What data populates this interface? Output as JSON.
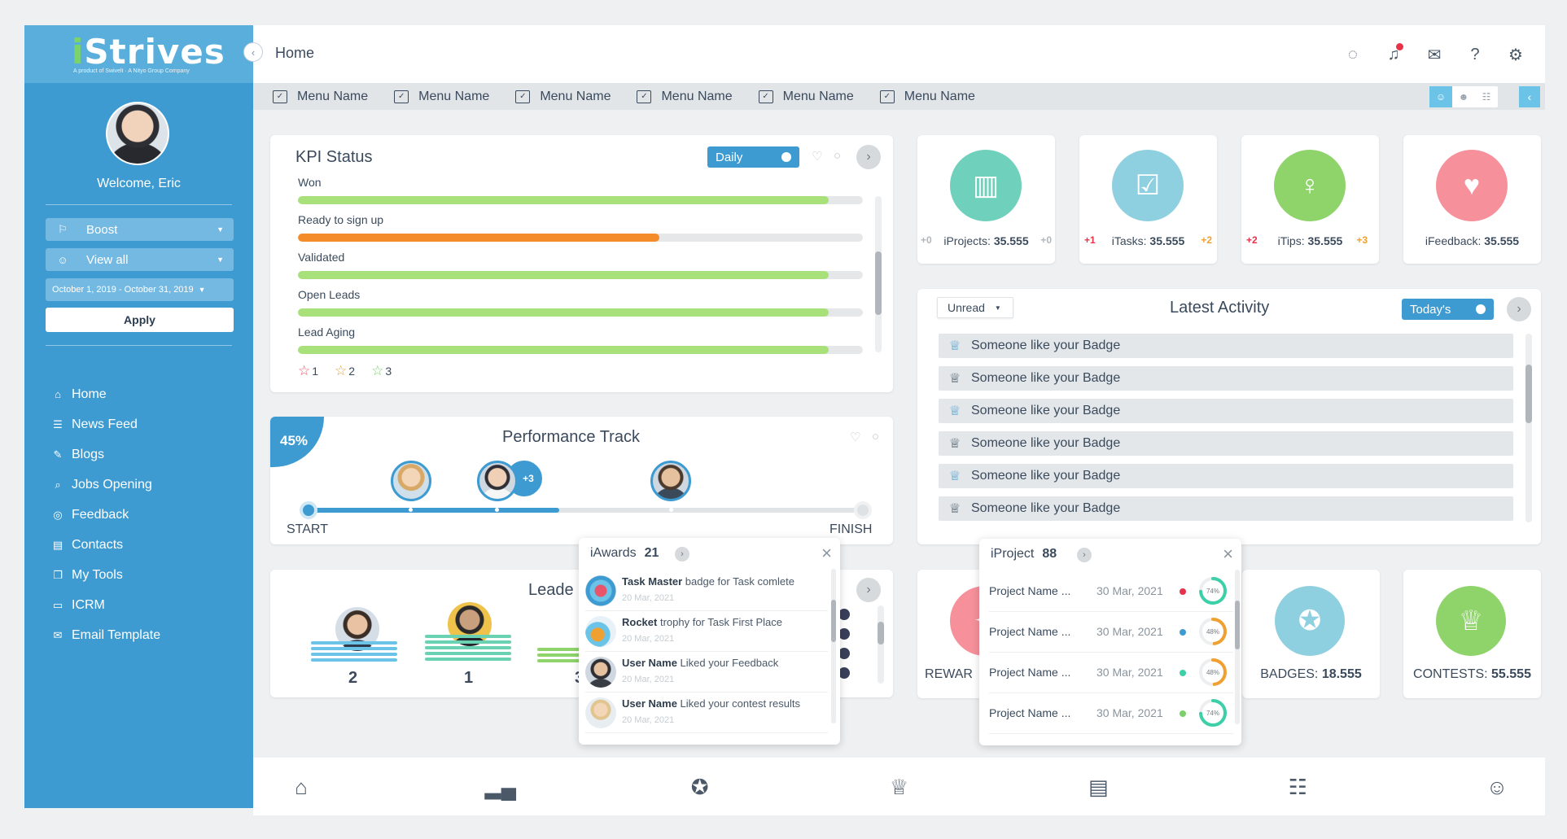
{
  "logo": {
    "prefix": "i",
    "name": "Strives",
    "sub": "A product of Swivelt · A Nityo Group Company"
  },
  "user": {
    "welcome": "Welcome, Eric"
  },
  "filters": {
    "boost": "Boost",
    "view": "View all",
    "date_range": "October 1, 2019 - October 31, 2019",
    "apply": "Apply"
  },
  "sidebar": {
    "items": [
      {
        "label": "Home",
        "icon": "home-icon"
      },
      {
        "label": "News Feed",
        "icon": "news-icon"
      },
      {
        "label": "Blogs",
        "icon": "blog-icon"
      },
      {
        "label": "Jobs Opening",
        "icon": "jobs-icon"
      },
      {
        "label": "Feedback",
        "icon": "feedback-icon"
      },
      {
        "label": "Contacts",
        "icon": "contacts-icon"
      },
      {
        "label": "My Tools",
        "icon": "tools-icon"
      },
      {
        "label": "ICRM",
        "icon": "crm-icon"
      },
      {
        "label": "Email Template",
        "icon": "email-template-icon"
      }
    ]
  },
  "header": {
    "title": "Home"
  },
  "menubar": {
    "items": [
      "Menu Name",
      "Menu Name",
      "Menu Name",
      "Menu Name",
      "Menu Name",
      "Menu Name"
    ]
  },
  "kpi": {
    "title": "KPI Status",
    "toggle": "Daily",
    "rows": [
      {
        "label": "Won",
        "value": 0.94,
        "color": "#a8e17a"
      },
      {
        "label": "Ready to sign up",
        "value": 0.64,
        "color": "#f58c2a"
      },
      {
        "label": "Validated",
        "value": 0.94,
        "color": "#a8e17a"
      },
      {
        "label": "Open Leads",
        "value": 0.94,
        "color": "#a8e17a"
      },
      {
        "label": "Lead Aging",
        "value": 0.94,
        "color": "#a8e17a"
      }
    ],
    "stars": [
      {
        "count": "1",
        "color": "#e8556a"
      },
      {
        "count": "2",
        "color": "#f0a030"
      },
      {
        "count": "3",
        "color": "#7ad06b"
      }
    ]
  },
  "performance": {
    "title": "Performance Track",
    "percent": "45%",
    "progress": 0.45,
    "extra": "+3",
    "start": "START",
    "finish": "FINISH"
  },
  "leaderboard": {
    "title": "Leade",
    "ranks": [
      "2",
      "1",
      "3"
    ]
  },
  "stats": [
    {
      "name": "iProjects",
      "value": "35.555",
      "left": "+0",
      "right": "+0",
      "color": "#6fd1bb",
      "left_color": "#b0b6bb",
      "right_color": "#b0b6bb"
    },
    {
      "name": "iTasks",
      "value": "35.555",
      "left": "+1",
      "right": "+2",
      "color": "#8fd0e0",
      "left_color": "#e8324a",
      "right_color": "#f0a030"
    },
    {
      "name": "iTips",
      "value": "35.555",
      "left": "+2",
      "right": "+3",
      "color": "#8fd36b",
      "left_color": "#e8324a",
      "right_color": "#f0a030"
    },
    {
      "name": "iFeedback",
      "value": "35.555",
      "left": "",
      "right": "",
      "color": "#f6909b",
      "left_color": "#b0b6bb",
      "right_color": "#b0b6bb"
    }
  ],
  "activity": {
    "title": "Latest Activity",
    "filter": "Unread",
    "toggle": "Today's",
    "items": [
      "Someone like your Badge",
      "Someone like your Badge",
      "Someone like your Badge",
      "Someone like your Badge",
      "Someone like your Badge",
      "Someone like your Badge"
    ]
  },
  "bottom_stats": [
    {
      "label": "REWAR",
      "value": ""
    },
    {
      "label": "BADGES: ",
      "value": "18.555"
    },
    {
      "label": "CONTESTS: ",
      "value": "55.555"
    }
  ],
  "iawards": {
    "title": "iAwards",
    "count": "21",
    "items": [
      {
        "bold": "Task Master",
        "text": " badge for Task comlete",
        "date": "20 Mar, 2021"
      },
      {
        "bold": "Rocket",
        "text": " trophy for Task First Place",
        "date": "20 Mar, 2021"
      },
      {
        "bold": "User Name",
        "text": " Liked your Feedback",
        "date": "20 Mar, 2021"
      },
      {
        "bold": "User Name",
        "text": " Liked your contest results",
        "date": "20 Mar, 2021"
      }
    ]
  },
  "iproject": {
    "title": "iProject",
    "count": "88",
    "items": [
      {
        "name": "Project Name ...",
        "date": "30 Mar, 2021",
        "dot": "#e8324a",
        "pct": "74%",
        "value": 0.74,
        "ring": "#3dcfa8"
      },
      {
        "name": "Project Name ...",
        "date": "30 Mar, 2021",
        "dot": "#3d9bd1",
        "pct": "48%",
        "value": 0.48,
        "ring": "#f0a030"
      },
      {
        "name": "Project Name ...",
        "date": "30 Mar, 2021",
        "dot": "#3dcfa8",
        "pct": "48%",
        "value": 0.48,
        "ring": "#f0a030"
      },
      {
        "name": "Project Name ...",
        "date": "30 Mar, 2021",
        "dot": "#7ad06b",
        "pct": "74%",
        "value": 0.74,
        "ring": "#3dcfa8"
      }
    ]
  }
}
